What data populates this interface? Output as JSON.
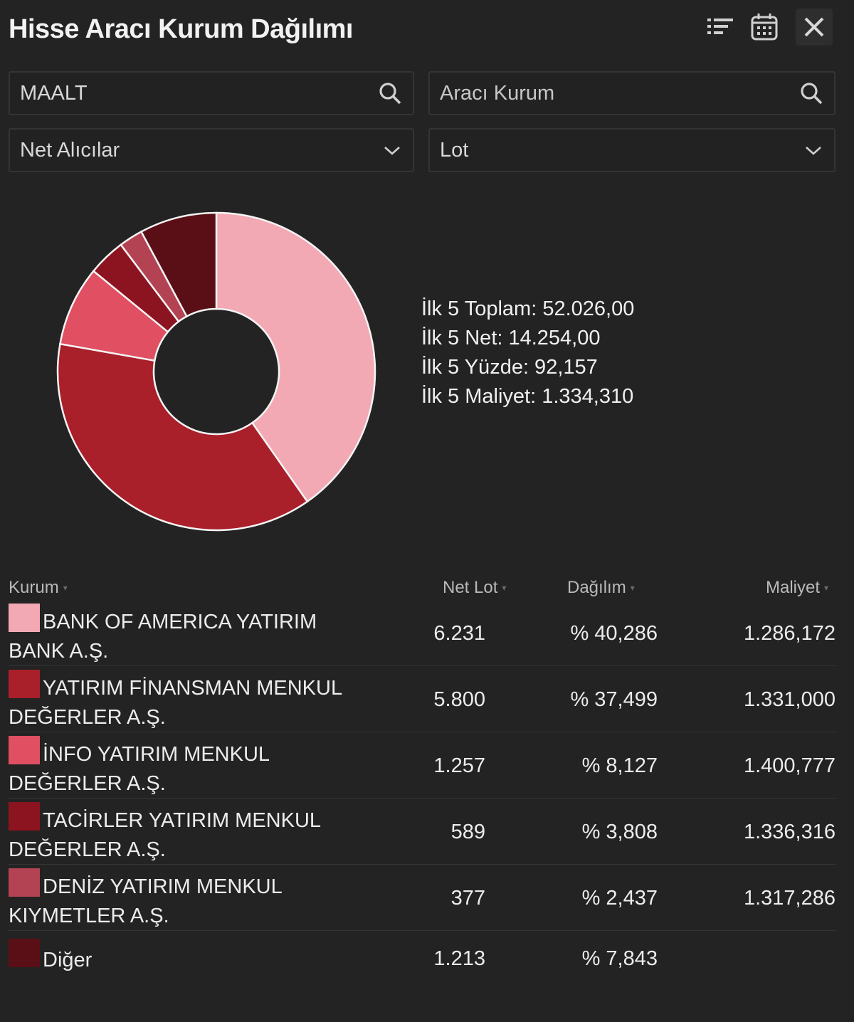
{
  "header": {
    "title": "Hisse Aracı Kurum Dağılımı"
  },
  "filters": {
    "symbol_value": "MAALT",
    "broker_placeholder": "Aracı Kurum",
    "side_value": "Net Alıcılar",
    "unit_value": "Lot"
  },
  "summary": {
    "total": "İlk 5 Toplam: 52.026,00",
    "net": "İlk 5 Net: 14.254,00",
    "percent": "İlk 5 Yüzde: 92,157",
    "cost": "İlk 5 Maliyet: 1.334,310"
  },
  "table": {
    "columns": [
      "Kurum",
      "Net Lot",
      "Dağılım",
      "Maliyet"
    ],
    "rows": [
      {
        "name": "BANK OF AMERICA YATIRIM BANK A.Ş.",
        "net_lot": "6.231",
        "dagilim": "% 40,286",
        "maliyet": "1.286,172",
        "color": "#f2a9b3"
      },
      {
        "name": "YATIRIM FİNANSMAN MENKUL DEĞERLER A.Ş.",
        "net_lot": "5.800",
        "dagilim": "% 37,499",
        "maliyet": "1.331,000",
        "color": "#a91f2a"
      },
      {
        "name": "İNFO YATIRIM MENKUL DEĞERLER A.Ş.",
        "net_lot": "1.257",
        "dagilim": "% 8,127",
        "maliyet": "1.400,777",
        "color": "#e04f62"
      },
      {
        "name": "TACİRLER YATIRIM MENKUL DEĞERLER A.Ş.",
        "net_lot": "589",
        "dagilim": "% 3,808",
        "maliyet": "1.336,316",
        "color": "#8c1420"
      },
      {
        "name": "DENİZ YATIRIM MENKUL KIYMETLER A.Ş.",
        "net_lot": "377",
        "dagilim": "% 2,437",
        "maliyet": "1.317,286",
        "color": "#b34353"
      },
      {
        "name": "Diğer",
        "net_lot": "1.213",
        "dagilim": "% 7,843",
        "maliyet": "",
        "color": "#5a0f16"
      }
    ]
  },
  "chart_data": {
    "type": "pie",
    "donut": true,
    "labels": [
      "BANK OF AMERICA YATIRIM BANK A.Ş.",
      "YATIRIM FİNANSMAN MENKUL DEĞERLER A.Ş.",
      "İNFO YATIRIM MENKUL DEĞERLER A.Ş.",
      "TACİRLER YATIRIM MENKUL DEĞERLER A.Ş.",
      "DENİZ YATIRIM MENKUL KIYMETLER A.Ş.",
      "Diğer"
    ],
    "values": [
      6231,
      5800,
      1257,
      589,
      377,
      1213
    ],
    "percentages": [
      40.286,
      37.499,
      8.127,
      3.808,
      2.437,
      7.843
    ],
    "colors": [
      "#f2a9b3",
      "#a91f2a",
      "#e04f62",
      "#8c1420",
      "#b34353",
      "#5a0f16"
    ]
  },
  "icons": {
    "sort": "sort-icon",
    "calendar": "calendar-icon",
    "close": "close-icon",
    "search": "search-icon",
    "dropdown": "chevron-down-icon"
  }
}
